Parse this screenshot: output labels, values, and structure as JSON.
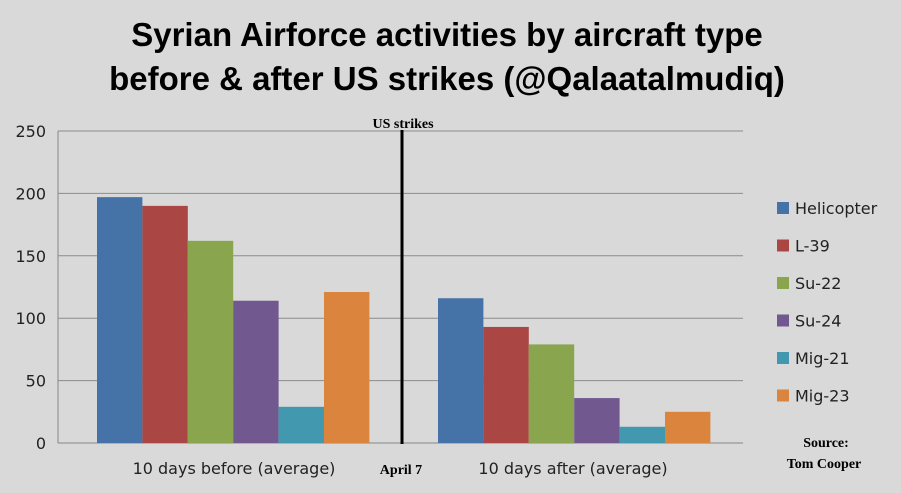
{
  "chart_data": {
    "type": "bar",
    "title_lines": [
      "Syrian Airforce activities by aircraft type",
      "before & after US strikes (@Qalaatalmudiq)"
    ],
    "categories": [
      "10 days before (average)",
      "10 days after (average)"
    ],
    "series": [
      {
        "name": "Helicopter",
        "color": "#4572a7",
        "values": [
          197,
          116
        ]
      },
      {
        "name": "L-39",
        "color": "#aa4643",
        "values": [
          190,
          93
        ]
      },
      {
        "name": "Su-22",
        "color": "#89a54e",
        "values": [
          162,
          79
        ]
      },
      {
        "name": "Su-24",
        "color": "#71588f",
        "values": [
          114,
          36
        ]
      },
      {
        "name": "Mig-21",
        "color": "#4198af",
        "values": [
          29,
          13
        ]
      },
      {
        "name": "Mig-23",
        "color": "#db843d",
        "values": [
          121,
          25
        ]
      }
    ],
    "ylim": [
      0,
      250
    ],
    "yticks": [
      0,
      50,
      100,
      150,
      200,
      250
    ],
    "grid": true,
    "legend_position": "right",
    "divider": {
      "top_label": "US strikes",
      "bottom_label": "April 7"
    },
    "source_lines": [
      "Source:",
      "Tom Cooper"
    ]
  }
}
